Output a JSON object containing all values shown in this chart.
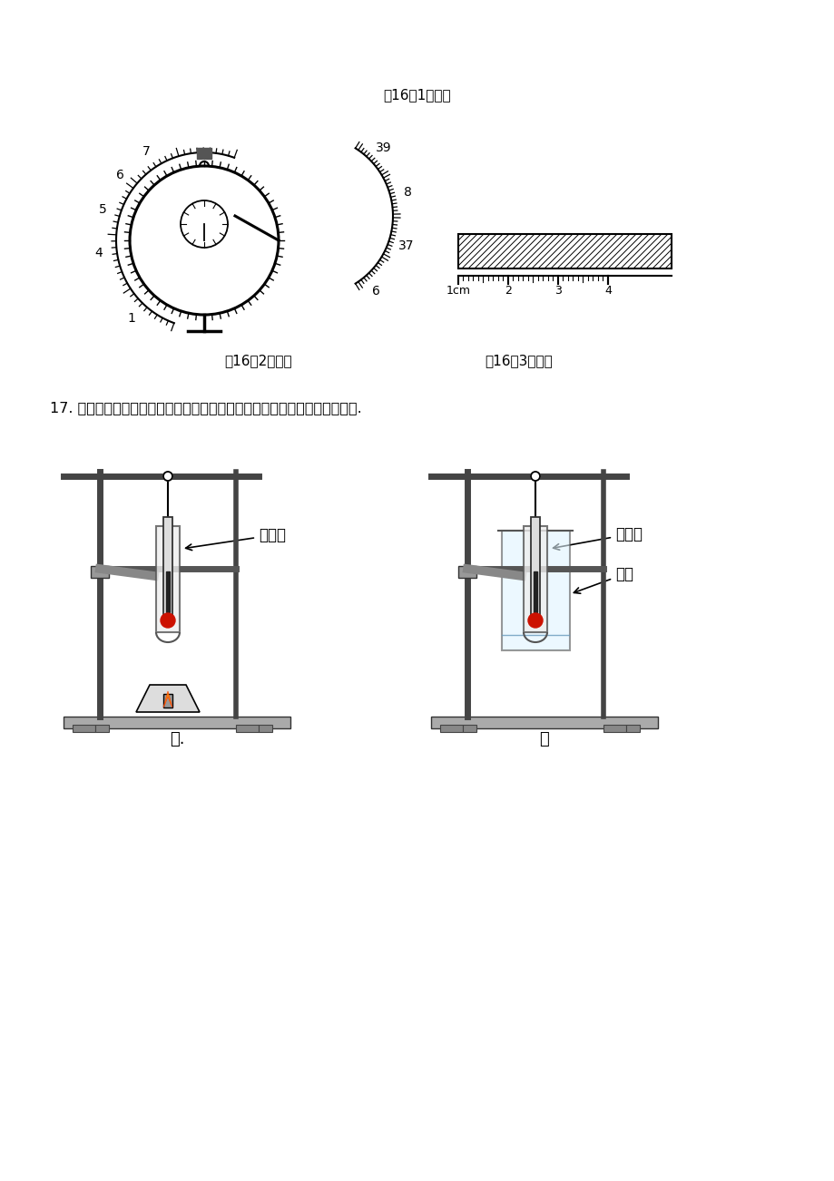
{
  "bg_color": "#ffffff",
  "title1": "第16（1）题图",
  "title2": "第16（2）题图",
  "title3": "第16（3）题图",
  "q17_text": "17. 小华设计了如图所示的甲、乙两种装置来探究「冰溶化时温度变化规律」.",
  "label_jia": "甲.",
  "label_yi": "乙",
  "label_wenduji1": "温度计",
  "label_wenduji2": "温度计",
  "label_reshui": "热水",
  "stopwatch_numbers_left": [
    "4",
    "5",
    "6",
    "7",
    "1"
  ],
  "stopwatch_numbers_right": [
    "6",
    "37",
    "8",
    "39"
  ],
  "ruler_labels": [
    "1cm",
    "2",
    "3",
    "4"
  ]
}
